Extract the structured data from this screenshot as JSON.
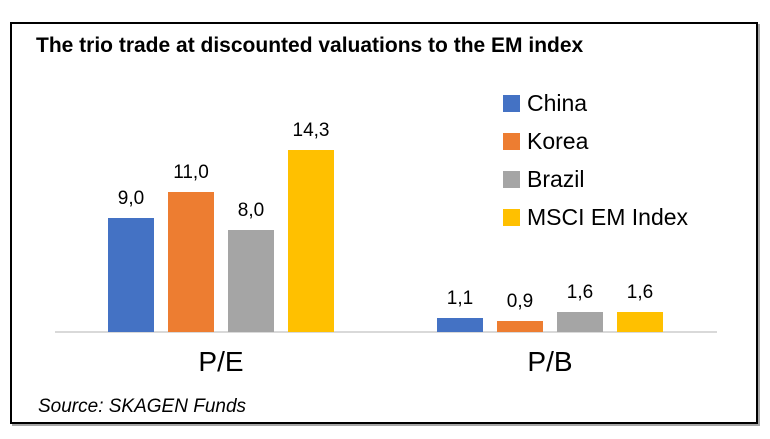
{
  "chart": {
    "title": "The trio trade at discounted valuations to the EM index",
    "source": "Source: SKAGEN Funds"
  },
  "chart_data": {
    "type": "bar",
    "title": "The trio trade at discounted valuations to the EM index",
    "categories": [
      "P/E",
      "P/B"
    ],
    "series": [
      {
        "name": "China",
        "color": "#4472C4",
        "values": [
          9.0,
          1.1
        ],
        "labels": [
          "9,0",
          "1,1"
        ]
      },
      {
        "name": "Korea",
        "color": "#ED7D31",
        "values": [
          11.0,
          0.9
        ],
        "labels": [
          "11,0",
          "0,9"
        ]
      },
      {
        "name": "Brazil",
        "color": "#A5A5A5",
        "values": [
          8.0,
          1.6
        ],
        "labels": [
          "8,0",
          "1,6"
        ]
      },
      {
        "name": "MSCI EM Index",
        "color": "#FFC000",
        "values": [
          14.3,
          1.6
        ],
        "labels": [
          "14,3",
          "1,6"
        ]
      }
    ],
    "xlabel": "",
    "ylabel": "",
    "ylim": [
      0,
      14.3
    ],
    "grid": false,
    "legend_position": "right",
    "axis_line_color": "#D9D9D9",
    "decimal_separator": ",",
    "source": "Source: SKAGEN Funds"
  }
}
